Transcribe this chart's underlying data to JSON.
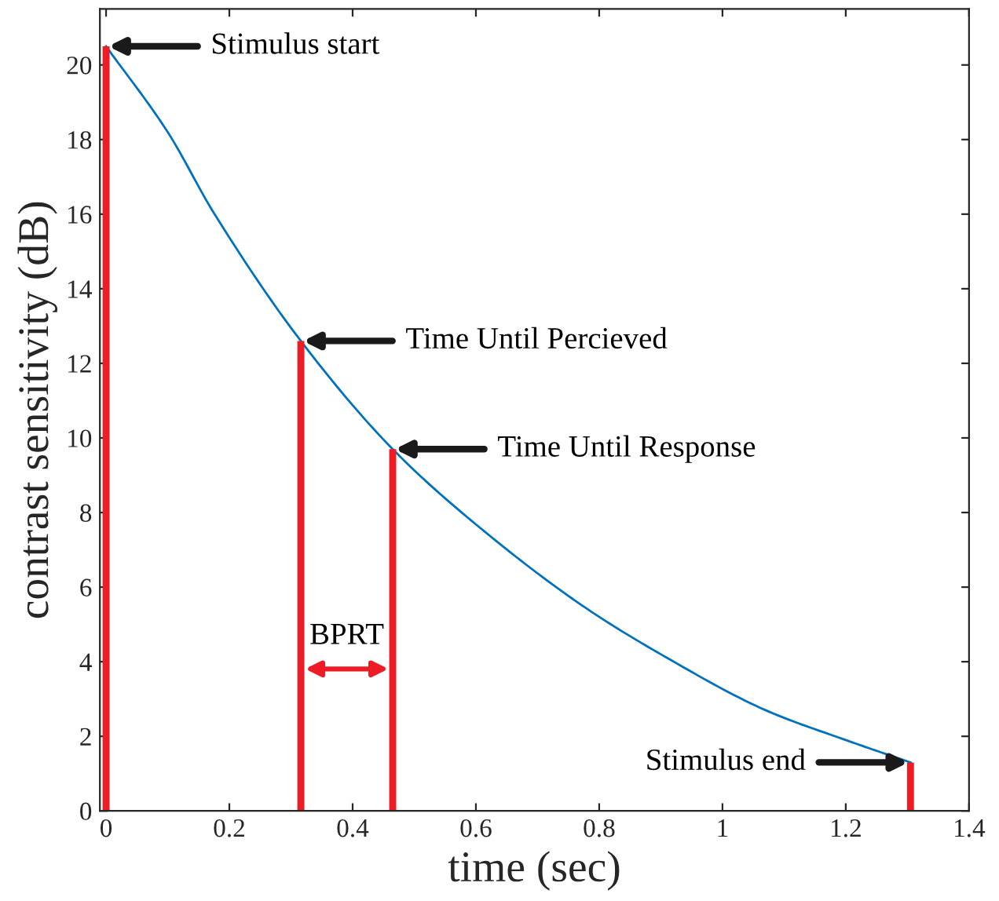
{
  "chart_data": {
    "type": "line",
    "xlabel": "time (sec)",
    "ylabel": "contrast sensitivity (dB)",
    "series": [
      {
        "color": "#0072bd",
        "x": [
          0,
          0.1,
          0.176,
          0.316,
          0.465,
          0.606,
          0.773,
          0.9,
          1.07,
          1.2,
          1.305
        ],
        "values": [
          20.5,
          18.2,
          16.0,
          12.6,
          9.7,
          7.6,
          5.5,
          4.2,
          2.7,
          1.9,
          1.3
        ]
      },
      {
        "type": "bar",
        "color": "#ee1c25",
        "x": [
          0,
          0.316,
          0.465,
          1.305
        ],
        "values": [
          20.5,
          12.6,
          9.7,
          1.3
        ]
      }
    ],
    "annotations": [
      {
        "text": "Stimulus start",
        "x": 0,
        "y": 20.5
      },
      {
        "text": "Time Until Percieved",
        "x": 0.316,
        "y": 12.6
      },
      {
        "text": "Time Until Response",
        "x": 0.465,
        "y": 9.7
      },
      {
        "text": "Stimulus end",
        "x": 1.305,
        "y": 1.3
      },
      "BPRT"
    ],
    "xlim": [
      -0.01,
      1.4
    ],
    "ylim": [
      0,
      21.5
    ],
    "xticks": [
      0,
      0.2,
      0.4,
      0.6,
      0.8,
      1,
      1.2,
      1.4
    ],
    "yticks": [
      0,
      2,
      4,
      6,
      8,
      10,
      12,
      14,
      16,
      18,
      20
    ],
    "grid": false,
    "legend": false,
    "marker": "none",
    "line_style": "solid"
  }
}
